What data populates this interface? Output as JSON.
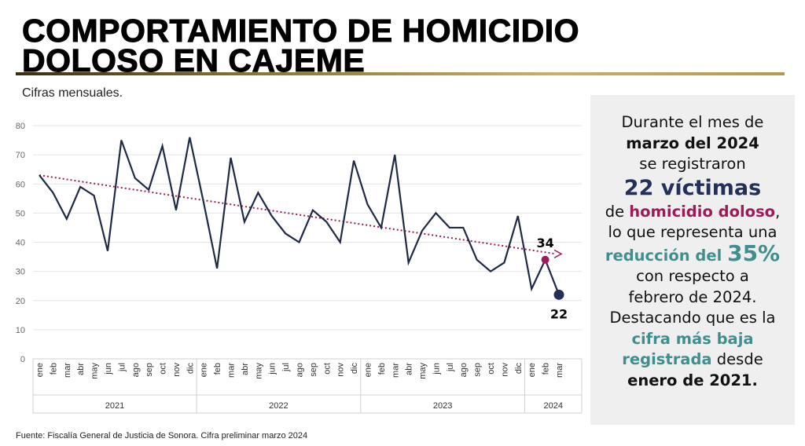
{
  "title_line1": "COMPORTAMIENTO DE HOMICIDIO",
  "title_line2": "DOLOSO EN CAJEME",
  "subtitle": "Cifras mensuales.",
  "source": "Fuente: Fiscalía General de Justicia de Sonora. Cifra preliminar marzo 2024",
  "colors": {
    "line": "#1f2a44",
    "trend": "#a01a5a",
    "highlight_feb": "#a01a5a",
    "highlight_mar": "#22305a",
    "navy": "#22305a",
    "maroon": "#a01a5a",
    "teal": "#3f8f8f",
    "gold": "#b49a4f"
  },
  "panel": {
    "l1": "Durante el mes de",
    "l2": "marzo del 2024",
    "l3": "se registraron",
    "l4": "22 víctimas",
    "l5a": "de ",
    "l5b": "homicidio doloso",
    "l5c": ",",
    "l6": "lo que representa una",
    "l7a": "reducción del ",
    "l7b": "35%",
    "l8": "con respecto a",
    "l9": "febrero de 2024.",
    "l10": "Destacando que es la",
    "l11": "cifra más baja",
    "l12a": "registrada",
    "l12b": " desde",
    "l13": "enero de 2021."
  },
  "chart_data": {
    "type": "line",
    "ylim": [
      0,
      80
    ],
    "yticks": [
      0,
      10,
      20,
      30,
      40,
      50,
      60,
      70,
      80
    ],
    "grid": true,
    "years": [
      "2021",
      "2022",
      "2023",
      "2024"
    ],
    "months": [
      "ene",
      "feb",
      "mar",
      "abr",
      "may",
      "jun",
      "jul",
      "ago",
      "sep",
      "oct",
      "nov",
      "dic"
    ],
    "categories": [
      "ene",
      "feb",
      "mar",
      "abr",
      "may",
      "jun",
      "jul",
      "ago",
      "sep",
      "oct",
      "nov",
      "dic",
      "ene",
      "feb",
      "mar",
      "abr",
      "may",
      "jun",
      "jul",
      "ago",
      "sep",
      "oct",
      "nov",
      "dic",
      "ene",
      "feb",
      "mar",
      "abr",
      "may",
      "jun",
      "jul",
      "ago",
      "sep",
      "oct",
      "nov",
      "dic",
      "ene",
      "feb",
      "mar"
    ],
    "values": [
      63,
      57,
      48,
      59,
      56,
      37,
      75,
      62,
      58,
      73,
      51,
      76,
      54,
      31,
      69,
      47,
      57,
      49,
      43,
      40,
      51,
      47,
      40,
      68,
      53,
      45,
      70,
      33,
      44,
      50,
      45,
      45,
      34,
      30,
      33,
      49,
      24,
      34,
      22
    ],
    "trendline": {
      "type": "linear dotted arrow",
      "start": 63,
      "end": 36
    },
    "data_labels": [
      {
        "index": 37,
        "label": "34"
      },
      {
        "index": 38,
        "label": "22"
      }
    ]
  }
}
